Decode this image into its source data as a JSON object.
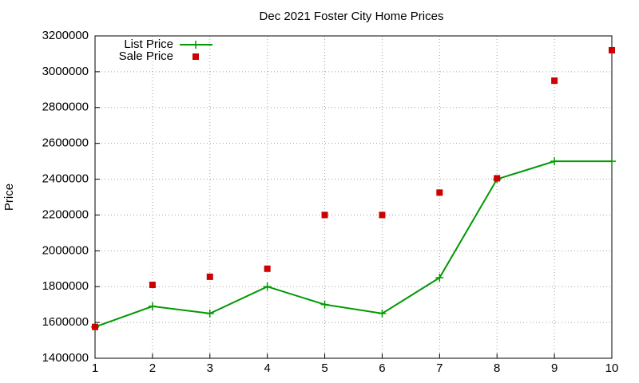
{
  "chart_data": {
    "type": "line",
    "title": "Dec 2021 Foster City Home Prices",
    "y_label": "Price",
    "x": [
      1,
      2,
      3,
      4,
      5,
      6,
      7,
      8,
      9,
      10
    ],
    "series": [
      {
        "name": "List Price",
        "color": "#009900",
        "style": "linespoints",
        "values": [
          1575000,
          1690000,
          1650000,
          1800000,
          1700000,
          1650000,
          1850000,
          2400000,
          2500000,
          2500000
        ]
      },
      {
        "name": "Sale Price",
        "color": "#cc0000",
        "style": "points",
        "values": [
          1575000,
          1810000,
          1855000,
          1900000,
          2200000,
          2200000,
          2325000,
          2405000,
          2950000,
          3120000
        ]
      }
    ],
    "xlim": [
      1,
      10
    ],
    "xticks": [
      1,
      2,
      3,
      4,
      5,
      6,
      7,
      8,
      9,
      10
    ],
    "ylim": [
      1400000,
      3200000
    ],
    "yticks": [
      1400000,
      1600000,
      1800000,
      2000000,
      2200000,
      2400000,
      2600000,
      2800000,
      3000000,
      3200000
    ],
    "grid": true,
    "legend": "top-left"
  }
}
